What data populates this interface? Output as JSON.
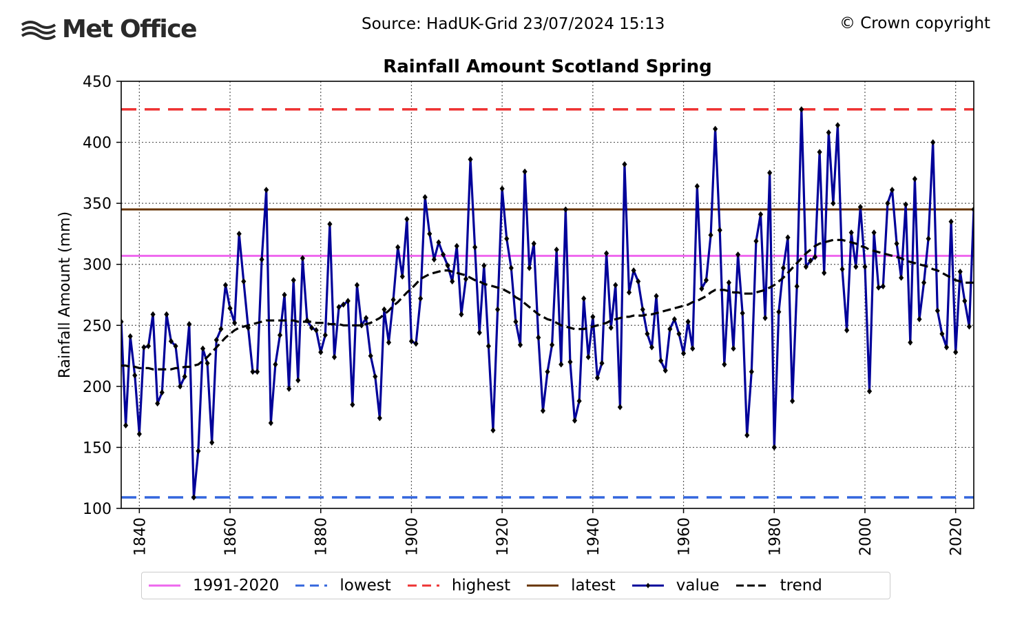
{
  "header": {
    "logo_text": "Met Office",
    "source": "Source: HadUK-Grid 23/07/2024 15:13",
    "copyright": "© Crown copyright"
  },
  "colors": {
    "mean": "#ee66ee",
    "lowest": "#3366dd",
    "highest": "#ee3333",
    "latest": "#663300",
    "value": "#000099",
    "trend": "#000000"
  },
  "legend": [
    {
      "label": "1991-2020",
      "key": "mean"
    },
    {
      "label": "lowest",
      "key": "lowest"
    },
    {
      "label": "highest",
      "key": "highest"
    },
    {
      "label": "latest",
      "key": "latest"
    },
    {
      "label": "value",
      "key": "value"
    },
    {
      "label": "trend",
      "key": "trend"
    }
  ],
  "chart_data": {
    "type": "line",
    "title": "Rainfall Amount Scotland Spring",
    "ylabel": "Rainfall Amount (mm)",
    "xlabel": "",
    "xlim": [
      1836,
      2024
    ],
    "ylim": [
      100,
      450
    ],
    "xticks": [
      1840,
      1860,
      1880,
      1900,
      1920,
      1940,
      1960,
      1980,
      2000,
      2020
    ],
    "yticks": [
      100,
      150,
      200,
      250,
      300,
      350,
      400,
      450
    ],
    "grid": true,
    "legend_position": "bottom",
    "reference_lines": {
      "mean_1991_2020": 307,
      "lowest": 109,
      "highest": 427,
      "latest": 345
    },
    "x": [
      1836,
      1837,
      1838,
      1839,
      1840,
      1841,
      1842,
      1843,
      1844,
      1845,
      1846,
      1847,
      1848,
      1849,
      1850,
      1851,
      1852,
      1853,
      1854,
      1855,
      1856,
      1857,
      1858,
      1859,
      1860,
      1861,
      1862,
      1863,
      1864,
      1865,
      1866,
      1867,
      1868,
      1869,
      1870,
      1871,
      1872,
      1873,
      1874,
      1875,
      1876,
      1877,
      1878,
      1879,
      1880,
      1881,
      1882,
      1883,
      1884,
      1885,
      1886,
      1887,
      1888,
      1889,
      1890,
      1891,
      1892,
      1893,
      1894,
      1895,
      1896,
      1897,
      1898,
      1899,
      1900,
      1901,
      1902,
      1903,
      1904,
      1905,
      1906,
      1907,
      1908,
      1909,
      1910,
      1911,
      1912,
      1913,
      1914,
      1915,
      1916,
      1917,
      1918,
      1919,
      1920,
      1921,
      1922,
      1923,
      1924,
      1925,
      1926,
      1927,
      1928,
      1929,
      1930,
      1931,
      1932,
      1933,
      1934,
      1935,
      1936,
      1937,
      1938,
      1939,
      1940,
      1941,
      1942,
      1943,
      1944,
      1945,
      1946,
      1947,
      1948,
      1949,
      1950,
      1951,
      1952,
      1953,
      1954,
      1955,
      1956,
      1957,
      1958,
      1959,
      1960,
      1961,
      1962,
      1963,
      1964,
      1965,
      1966,
      1967,
      1968,
      1969,
      1970,
      1971,
      1972,
      1973,
      1974,
      1975,
      1976,
      1977,
      1978,
      1979,
      1980,
      1981,
      1982,
      1983,
      1984,
      1985,
      1986,
      1987,
      1988,
      1989,
      1990,
      1991,
      1992,
      1993,
      1994,
      1995,
      1996,
      1997,
      1998,
      1999,
      2000,
      2001,
      2002,
      2003,
      2004,
      2005,
      2006,
      2007,
      2008,
      2009,
      2010,
      2011,
      2012,
      2013,
      2014,
      2015,
      2016,
      2017,
      2018,
      2019,
      2020,
      2021,
      2022,
      2023,
      2024
    ],
    "series": [
      {
        "name": "value",
        "values": [
          253,
          168,
          241,
          209,
          161,
          232,
          233,
          259,
          186,
          195,
          259,
          237,
          233,
          200,
          208,
          251,
          109,
          147,
          231,
          219,
          154,
          238,
          247,
          283,
          264,
          252,
          325,
          286,
          248,
          212,
          212,
          304,
          361,
          170,
          218,
          242,
          275,
          198,
          287,
          205,
          305,
          254,
          248,
          246,
          228,
          242,
          333,
          224,
          265,
          267,
          270,
          185,
          283,
          250,
          256,
          225,
          208,
          174,
          263,
          236,
          271,
          314,
          290,
          337,
          237,
          235,
          272,
          355,
          325,
          304,
          318,
          308,
          299,
          286,
          315,
          259,
          288,
          386,
          314,
          244,
          299,
          233,
          164,
          263,
          362,
          321,
          297,
          253,
          234,
          376,
          297,
          317,
          240,
          180,
          212,
          234,
          312,
          218,
          345,
          220,
          172,
          188,
          272,
          224,
          257,
          207,
          219,
          309,
          248,
          283,
          183,
          382,
          277,
          295,
          286,
          263,
          243,
          232,
          274,
          221,
          213,
          247,
          255,
          243,
          227,
          253,
          231,
          364,
          280,
          287,
          324,
          411,
          328,
          218,
          285,
          231,
          308,
          260,
          160,
          212,
          319,
          341,
          256,
          375,
          150,
          261,
          297,
          322,
          188,
          282,
          427,
          298,
          303,
          306,
          392,
          293,
          408,
          350,
          414,
          296,
          246,
          326,
          298,
          347,
          298,
          196,
          326,
          281,
          282,
          350,
          361,
          317,
          289,
          349,
          236,
          370,
          255,
          285,
          321,
          400,
          262,
          243,
          232,
          335,
          228,
          294,
          270,
          249,
          345
        ]
      },
      {
        "name": "trend",
        "values": [
          217,
          217,
          216,
          216,
          215,
          215,
          215,
          214,
          214,
          214,
          214,
          214,
          215,
          215,
          216,
          216,
          217,
          218,
          221,
          224,
          228,
          232,
          236,
          240,
          243,
          246,
          248,
          249,
          250,
          251,
          252,
          253,
          254,
          254,
          254,
          254,
          254,
          254,
          254,
          253,
          253,
          253,
          253,
          252,
          252,
          252,
          251,
          251,
          251,
          250,
          250,
          250,
          250,
          250,
          251,
          252,
          254,
          256,
          259,
          262,
          266,
          269,
          273,
          277,
          280,
          284,
          288,
          290,
          292,
          293,
          294,
          295,
          295,
          294,
          293,
          292,
          291,
          289,
          287,
          286,
          284,
          283,
          282,
          281,
          280,
          278,
          276,
          273,
          271,
          268,
          265,
          262,
          259,
          257,
          255,
          254,
          252,
          250,
          249,
          248,
          247,
          247,
          247,
          248,
          249,
          250,
          251,
          252,
          254,
          255,
          256,
          257,
          257,
          258,
          258,
          258,
          259,
          259,
          260,
          261,
          262,
          263,
          264,
          265,
          266,
          267,
          269,
          270,
          272,
          274,
          277,
          279,
          279,
          279,
          278,
          277,
          277,
          276,
          276,
          276,
          277,
          278,
          279,
          281,
          283,
          286,
          289,
          293,
          297,
          301,
          305,
          309,
          312,
          315,
          317,
          318,
          319,
          320,
          320,
          320,
          319,
          318,
          317,
          315,
          314,
          312,
          311,
          310,
          309,
          308,
          307,
          306,
          305,
          303,
          302,
          301,
          300,
          299,
          298,
          296,
          295,
          293,
          291,
          289,
          287,
          286,
          285,
          285,
          285
        ]
      }
    ]
  }
}
